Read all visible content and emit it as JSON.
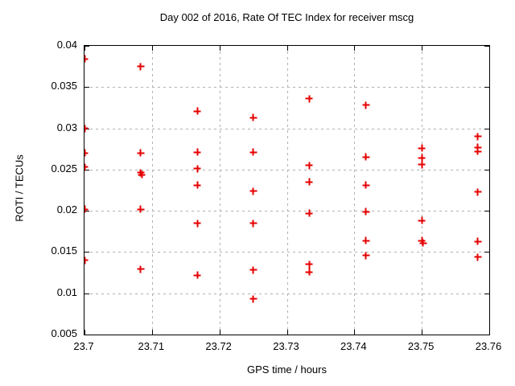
{
  "chart_data": {
    "type": "scatter",
    "title": "Day 002 of 2016, Rate Of TEC Index for receiver mscg",
    "xlabel": "GPS time / hours",
    "ylabel": "ROTI / TECUs",
    "xlim": [
      23.7,
      23.76
    ],
    "ylim": [
      0.005,
      0.04
    ],
    "x_ticks": [
      23.7,
      23.71,
      23.72,
      23.73,
      23.74,
      23.75,
      23.76
    ],
    "x_tick_labels": [
      "23.7",
      "23.71",
      "23.72",
      "23.73",
      "23.74",
      "23.75",
      "23.76"
    ],
    "y_ticks": [
      0.005,
      0.01,
      0.015,
      0.02,
      0.025,
      0.03,
      0.035,
      0.04
    ],
    "y_tick_labels": [
      "0.005",
      "0.01",
      "0.015",
      "0.02",
      "0.025",
      "0.03",
      "0.035",
      "0.04"
    ],
    "grid": true,
    "legend": "none",
    "marker": "plus",
    "marker_color": "#e60000",
    "grid_color": "#b0b0b0",
    "axis_color": "#000000",
    "background": "#ffffff",
    "points": [
      [
        23.7,
        0.0384
      ],
      [
        23.7,
        0.03
      ],
      [
        23.7,
        0.027
      ],
      [
        23.7,
        0.0253
      ],
      [
        23.7,
        0.0202
      ],
      [
        23.7,
        0.014
      ],
      [
        23.7083,
        0.0375
      ],
      [
        23.7083,
        0.027
      ],
      [
        23.7083,
        0.0246
      ],
      [
        23.7085,
        0.0244
      ],
      [
        23.7083,
        0.0202
      ],
      [
        23.7083,
        0.0129
      ],
      [
        23.7167,
        0.0321
      ],
      [
        23.7167,
        0.0271
      ],
      [
        23.7167,
        0.0251
      ],
      [
        23.7167,
        0.0231
      ],
      [
        23.7167,
        0.0185
      ],
      [
        23.7167,
        0.0122
      ],
      [
        23.725,
        0.0313
      ],
      [
        23.725,
        0.0271
      ],
      [
        23.725,
        0.0224
      ],
      [
        23.725,
        0.0185
      ],
      [
        23.725,
        0.0128
      ],
      [
        23.725,
        0.0093
      ],
      [
        23.7333,
        0.0336
      ],
      [
        23.7333,
        0.0255
      ],
      [
        23.7333,
        0.0235
      ],
      [
        23.7333,
        0.0197
      ],
      [
        23.7333,
        0.0135
      ],
      [
        23.7333,
        0.0126
      ],
      [
        23.7417,
        0.0328
      ],
      [
        23.7417,
        0.0265
      ],
      [
        23.7417,
        0.0231
      ],
      [
        23.7417,
        0.0199
      ],
      [
        23.7417,
        0.0164
      ],
      [
        23.7417,
        0.0146
      ],
      [
        23.75,
        0.0276
      ],
      [
        23.75,
        0.0264
      ],
      [
        23.75,
        0.0256
      ],
      [
        23.75,
        0.0188
      ],
      [
        23.75,
        0.0164
      ],
      [
        23.7502,
        0.0161
      ],
      [
        23.7583,
        0.029
      ],
      [
        23.7583,
        0.0277
      ],
      [
        23.7583,
        0.0272
      ],
      [
        23.7583,
        0.0223
      ],
      [
        23.7583,
        0.0163
      ],
      [
        23.7583,
        0.0144
      ]
    ]
  }
}
